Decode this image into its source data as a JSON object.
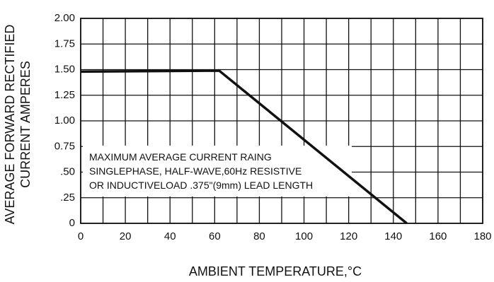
{
  "chart_data": {
    "type": "line",
    "xlabel": "AMBIENT TEMPERATURE,°C",
    "ylabel_lines": [
      "AVERAGE FORWARD RECTIFIED",
      "CURRENT AMPERES"
    ],
    "x_tick_labels": [
      "0",
      "20",
      "40",
      "60",
      "80",
      "100",
      "120",
      "140",
      "160",
      "180"
    ],
    "y_tick_labels": [
      {
        "value": 0,
        "label": "0"
      },
      {
        "value": 0.25,
        "label": ".25"
      },
      {
        "value": 0.5,
        "label": ".50"
      },
      {
        "value": 0.75,
        "label": "0.75"
      },
      {
        "value": 1.0,
        "label": "1.00"
      },
      {
        "value": 1.25,
        "label": "1.25"
      },
      {
        "value": 1.5,
        "label": "1.50"
      },
      {
        "value": 1.75,
        "label": "1.75"
      },
      {
        "value": 2.0,
        "label": "2.00"
      }
    ],
    "xlim": [
      0,
      180
    ],
    "ylim": [
      0,
      2.0
    ],
    "grid": true,
    "grid_x_step": 10,
    "grid_y_step": 0.25,
    "series": [
      {
        "x": [
          0,
          62,
          146
        ],
        "y": [
          1.48,
          1.49,
          0
        ],
        "color": "#111111"
      }
    ],
    "annotation": {
      "lines": [
        "MAXIMUM AVERAGE CURRENT RAING",
        "SINGLEPHASE, HALF-WAVE,60Hz RESISTIVE",
        "OR INDUCTIVELOAD .375\"(9mm) LEAD LENGTH"
      ]
    }
  }
}
